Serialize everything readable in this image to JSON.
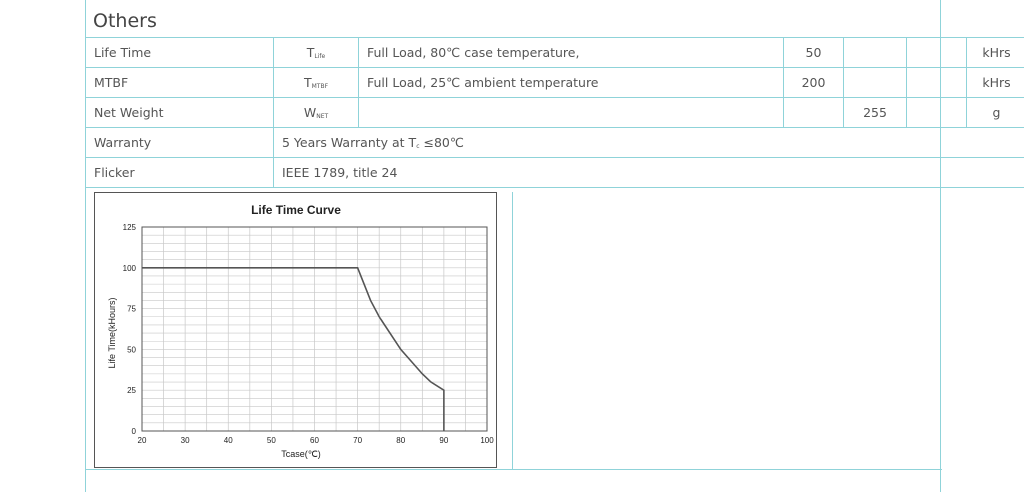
{
  "section": {
    "title": "Others"
  },
  "rows": [
    {
      "param": "Life Time",
      "sym_main": "T",
      "sym_sub": "Life",
      "cond": "Full Load, 80℃ case temperature,",
      "min": "50",
      "typ": "",
      "max": "",
      "unit": "kHrs"
    },
    {
      "param": "MTBF",
      "sym_main": "T",
      "sym_sub": "MTBF",
      "cond": "Full Load, 25℃ ambient temperature",
      "min": "200",
      "typ": "",
      "max": "",
      "unit": "kHrs"
    },
    {
      "param": "Net Weight",
      "sym_main": "W",
      "sym_sub": "NET",
      "cond": "",
      "min": "",
      "typ": "255",
      "max": "",
      "unit": "g"
    }
  ],
  "warranty": {
    "label": "Warranty",
    "text_pre": "5 Years Warranty at T",
    "text_sub": "c",
    "text_post": " ≤80℃"
  },
  "flicker": {
    "label": "Flicker",
    "value": "IEEE 1789, title 24"
  },
  "chart_data": {
    "type": "line",
    "title": "Life Time Curve",
    "xlabel": "Tcase(℃)",
    "ylabel": "Life Time(kHours)",
    "xlim": [
      20,
      100
    ],
    "ylim": [
      0,
      125
    ],
    "x_ticks": [
      20,
      30,
      40,
      50,
      60,
      70,
      80,
      90,
      100
    ],
    "y_ticks": [
      0,
      25,
      50,
      75,
      100,
      125
    ],
    "grid": true,
    "x": [
      20,
      70,
      73,
      75,
      80,
      85,
      87,
      90,
      90
    ],
    "y": [
      100,
      100,
      80,
      70,
      50,
      35,
      30,
      25,
      0
    ],
    "colors": {
      "line": "#555555",
      "grid": "#c8c8c8"
    }
  }
}
